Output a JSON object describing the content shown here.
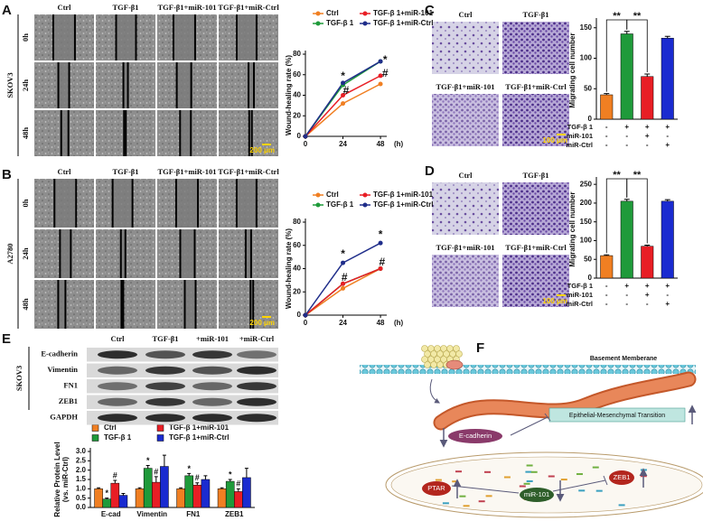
{
  "chart_data": [
    {
      "type": "line",
      "y_label": "Wound-healing rate (%)",
      "x_unit": "(h)",
      "x": [
        0,
        24,
        48
      ],
      "xlim": [
        0,
        52
      ],
      "xticks": [
        0,
        24,
        48
      ],
      "ylim": [
        0,
        80
      ],
      "yticks": [
        0,
        20,
        40,
        60,
        80
      ],
      "series": [
        {
          "name": "Ctrl",
          "color": "#f07f22",
          "values": [
            0,
            32,
            51
          ]
        },
        {
          "name": "TGF-β 1",
          "color": "#1f9a3a",
          "values": [
            0,
            50,
            73
          ]
        },
        {
          "name": "TGF-β 1+miR-101",
          "color": "#e81e25",
          "values": [
            0,
            40,
            59
          ]
        },
        {
          "name": "TGF-β 1+miR-Ctrl",
          "color": "#1f2d8a",
          "values": [
            0,
            52,
            73
          ]
        }
      ],
      "annotations": [
        {
          "text": "*",
          "x": 24,
          "y": 58
        },
        {
          "text": "#",
          "x": 26,
          "y": 44
        },
        {
          "text": "*",
          "x": 51,
          "y": 74
        },
        {
          "text": "#",
          "x": 51,
          "y": 61
        }
      ]
    },
    {
      "type": "line",
      "y_label": "Wound-healing rate (%)",
      "x_unit": "(h)",
      "x": [
        0,
        24,
        48
      ],
      "xlim": [
        0,
        52
      ],
      "xticks": [
        0,
        24,
        48
      ],
      "ylim": [
        0,
        80
      ],
      "yticks": [
        0,
        20,
        40,
        60,
        80
      ],
      "series": [
        {
          "name": "Ctrl",
          "color": "#f07f22",
          "values": [
            0,
            23,
            40
          ]
        },
        {
          "name": "TGF-β 1",
          "color": "#1f9a3a",
          "values": [
            0,
            27,
            40
          ]
        },
        {
          "name": "TGF-β 1+miR-101",
          "color": "#e81e25",
          "values": [
            0,
            27,
            40
          ]
        },
        {
          "name": "TGF-β 1+miR-Ctrl",
          "color": "#1f2d8a",
          "values": [
            0,
            45,
            62
          ]
        }
      ],
      "annotations": [
        {
          "text": "*",
          "x": 24,
          "y": 52
        },
        {
          "text": "#",
          "x": 25,
          "y": 32
        },
        {
          "text": "*",
          "x": 48,
          "y": 69
        },
        {
          "text": "#",
          "x": 49,
          "y": 45
        }
      ]
    },
    {
      "type": "bar",
      "y_label": "Migrating cell number",
      "values": [
        40,
        140,
        70,
        133
      ],
      "errors": [
        2,
        4,
        4,
        3
      ],
      "colors": [
        "#f07f22",
        "#1f9a3a",
        "#e81e25",
        "#1a2bd0"
      ],
      "ylim": [
        0,
        160
      ],
      "yticks": [
        0,
        50,
        100,
        150
      ],
      "conditions": [
        {
          "label": "TGF-β 1",
          "signs": [
            "-",
            "+",
            "+",
            "+"
          ]
        },
        {
          "label": "miR-101",
          "signs": [
            "-",
            "-",
            "+",
            "-"
          ]
        },
        {
          "label": "miR-Ctrl",
          "signs": [
            "-",
            "-",
            "-",
            "+"
          ]
        }
      ],
      "annotations": [
        {
          "text": "**"
        },
        {
          "text": "**"
        }
      ]
    },
    {
      "type": "bar",
      "y_label": "Migrating cell number",
      "values": [
        60,
        205,
        85,
        205
      ],
      "errors": [
        2,
        5,
        3,
        4
      ],
      "colors": [
        "#f07f22",
        "#1f9a3a",
        "#e81e25",
        "#1a2bd0"
      ],
      "ylim": [
        0,
        260
      ],
      "yticks": [
        0,
        50,
        100,
        150,
        200,
        250
      ],
      "conditions": [
        {
          "label": "TGF-β 1",
          "signs": [
            "-",
            "+",
            "+",
            "+"
          ]
        },
        {
          "label": "miR-101",
          "signs": [
            "-",
            "-",
            "+",
            "-"
          ]
        },
        {
          "label": "miR-Ctrl",
          "signs": [
            "-",
            "-",
            "-",
            "+"
          ]
        }
      ],
      "annotations": [
        {
          "text": "**"
        },
        {
          "text": "**"
        }
      ]
    },
    {
      "type": "grouped_bar",
      "y_label": [
        "Relative Protein Level",
        "(vs. miR-Ctrl)"
      ],
      "categories": [
        "E-cad",
        "Vimentin",
        "FN1",
        "ZEB1"
      ],
      "ylim": [
        0,
        3
      ],
      "yticks": [
        {
          "value": 0,
          "label": "0.0"
        },
        {
          "value": 0.5,
          "label": "0.5"
        },
        {
          "value": 1,
          "label": "1.0"
        },
        {
          "value": 1.5,
          "label": "1.5"
        },
        {
          "value": 2,
          "label": "2.0"
        },
        {
          "value": 2.5,
          "label": "2.5"
        },
        {
          "value": 3,
          "label": "3.0"
        }
      ],
      "series": [
        {
          "name": "Ctrl",
          "color": "#f07f22",
          "values": [
            1,
            1,
            1,
            1
          ],
          "errors": [
            0.05,
            0.05,
            0.05,
            0.05
          ]
        },
        {
          "name": "TGF-β 1",
          "color": "#1f9a3a",
          "values": [
            0.45,
            2.1,
            1.7,
            1.4
          ],
          "errors": [
            0.05,
            0.15,
            0.12,
            0.1
          ],
          "markers": [
            "*",
            "*",
            "*",
            "*"
          ]
        },
        {
          "name": "TGF-β 1+miR-101",
          "color": "#e81e25",
          "values": [
            1.3,
            1.35,
            1.2,
            0.85
          ],
          "errors": [
            0.15,
            0.3,
            0.12,
            0.15
          ],
          "markers": [
            "#",
            "#",
            "#",
            "#"
          ]
        },
        {
          "name": "TGF-β 1+miR-Ctrl",
          "color": "#1a2bd0",
          "values": [
            0.65,
            2.2,
            1.5,
            1.6
          ],
          "errors": [
            0.1,
            0.6,
            0.2,
            0.5
          ]
        }
      ]
    }
  ],
  "panels": [
    {
      "letter": "A",
      "col_labels": [
        "Ctrl",
        "TGF-β1",
        "TGF-β1+miR-101",
        "TGF-β1+miR-Ctrl"
      ],
      "row_labels": [
        "0h",
        "24h",
        "48h"
      ],
      "cell_line": "SKOV3",
      "scale": "200 μm"
    },
    {
      "letter": "B",
      "col_labels": [
        "Ctrl",
        "TGF-β1",
        "TGF-β1+miR-101",
        "TGF-β1+miR-Ctrl"
      ],
      "row_labels": [
        "0h",
        "24h",
        "48h"
      ],
      "cell_line": "A2780",
      "scale": "200 μm"
    },
    {
      "letter": "C",
      "image_labels": [
        "Ctrl",
        "TGF-β1",
        "TGF-β1+miR-101",
        "TGF-β1+miR-Ctrl"
      ],
      "scale": "100 μm"
    },
    {
      "letter": "D",
      "image_labels": [
        "Ctrl",
        "TGF-β1",
        "TGF-β1+miR-101",
        "TGF-β1+miR-Ctrl"
      ],
      "scale": "100 μm"
    },
    {
      "letter": "E",
      "lane_labels": [
        "Ctrl",
        "TGF-β1",
        "+miR-101",
        "+miR-Ctrl"
      ],
      "proteins": [
        "E-cadherin",
        "Vimentin",
        "FN1",
        "ZEB1",
        "GAPDH"
      ],
      "cell_line": "SKOV3"
    },
    {
      "letter": "F",
      "membrane": "Basement Memberane",
      "emt": "Epithelial-Mesenchymal Transition",
      "ecadherin": "E-cadherin",
      "ptar": "PTAR",
      "mir": "miR-101",
      "zeb1": "ZEB1"
    }
  ]
}
